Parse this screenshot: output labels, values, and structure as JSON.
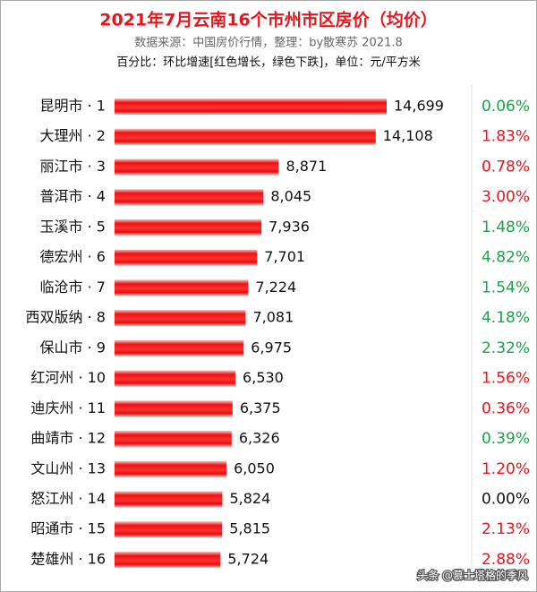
{
  "chart_data": {
    "type": "bar",
    "orientation": "horizontal",
    "title": "2021年7月云南16个市州市区房价（均价）",
    "subtitle": "数据来源：中国房价行情，整理：by散寒苏 2021.8",
    "note": "百分比：环比增速[红色增长，绿色下跌]，单位：元/平方米",
    "categories": [
      "昆明市 · 1",
      "大理州 · 2",
      "丽江市 · 3",
      "普洱市 · 4",
      "玉溪市 · 5",
      "德宏州 · 6",
      "临沧市 · 7",
      "西双版纳 · 8",
      "保山市 · 9",
      "红河州 · 10",
      "迪庆州 · 11",
      "曲靖市 · 12",
      "文山州 · 13",
      "怒江州 · 14",
      "昭通市 · 15",
      "楚雄州 · 16"
    ],
    "values": [
      14699,
      14108,
      8871,
      8045,
      7936,
      7701,
      7224,
      7081,
      6975,
      6530,
      6375,
      6326,
      6050,
      5824,
      5815,
      5724
    ],
    "value_labels": [
      "14,699",
      "14,108",
      "8,871",
      "8,045",
      "7,936",
      "7,701",
      "7,224",
      "7,081",
      "6,975",
      "6,530",
      "6,375",
      "6,326",
      "6,050",
      "5,824",
      "5,815",
      "5,724"
    ],
    "color": "#ee1111",
    "change": {
      "values": [
        0.06,
        1.83,
        0.78,
        3.0,
        1.48,
        4.82,
        1.54,
        4.18,
        2.32,
        1.56,
        0.36,
        0.39,
        1.2,
        0.0,
        2.13,
        2.88
      ],
      "value_labels": [
        "0.06%",
        "1.83%",
        "0.78%",
        "3.00%",
        "1.48%",
        "4.82%",
        "1.54%",
        "4.18%",
        "2.32%",
        "1.56%",
        "0.36%",
        "0.39%",
        "1.20%",
        "0.00%",
        "2.13%",
        "2.88%"
      ],
      "colors": [
        "#1aa34a",
        "#e8161c",
        "#e8161c",
        "#e8161c",
        "#1aa34a",
        "#1aa34a",
        "#1aa34a",
        "#1aa34a",
        "#1aa34a",
        "#e8161c",
        "#e8161c",
        "#1aa34a",
        "#e8161c",
        "#111111",
        "#e8161c",
        "#e8161c"
      ]
    },
    "watermark": "头条 @慕士塔格的季风"
  }
}
